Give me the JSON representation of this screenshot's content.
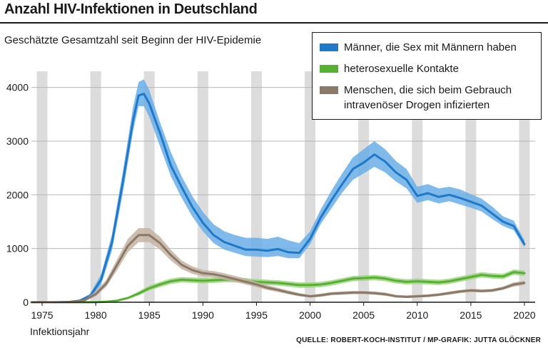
{
  "header": {
    "title": "Anzahl HIV-Infektionen in Deutschland",
    "subtitle": "Geschätzte Gesamtzahl seit Beginn der HIV-Epidemie",
    "source": "QUELLE: ROBERT-KOCH-INSTITUT / MP-GRAFIK: JUTTA GLÖCKNER"
  },
  "chart_data": {
    "type": "area",
    "title": "Anzahl HIV-Infektionen in Deutschland",
    "subtitle": "Geschätzte Gesamtzahl seit Beginn der HIV-Epidemie",
    "xlabel": "Infektionsjahr",
    "ylabel": "",
    "xlim": [
      1974,
      2021
    ],
    "ylim": [
      0,
      4300
    ],
    "x_ticks": [
      1975,
      1980,
      1985,
      1990,
      1995,
      2000,
      2005,
      2010,
      2015,
      2020
    ],
    "y_ticks": [
      0,
      1000,
      2000,
      3000,
      4000
    ],
    "shaded_year_bands": [
      1975,
      1980,
      1985,
      1990,
      1995,
      2000,
      2005,
      2010,
      2015,
      2020
    ],
    "legend_position": "top-right",
    "series": [
      {
        "name": "Männer, die Sex mit Männern haben",
        "color": "#1f78c8",
        "band_color": "#6aaee6",
        "points": [
          [
            1974,
            0,
            0,
            0
          ],
          [
            1976,
            0,
            0,
            0
          ],
          [
            1977.5,
            5,
            0,
            10
          ],
          [
            1978.5,
            30,
            15,
            45
          ],
          [
            1979.5,
            120,
            80,
            160
          ],
          [
            1980.5,
            420,
            320,
            520
          ],
          [
            1981.5,
            1100,
            950,
            1250
          ],
          [
            1982.5,
            2200,
            2000,
            2400
          ],
          [
            1983.5,
            3400,
            3200,
            3650
          ],
          [
            1984,
            3850,
            3650,
            4100
          ],
          [
            1984.5,
            3880,
            3650,
            4150
          ],
          [
            1985,
            3700,
            3450,
            3950
          ],
          [
            1986,
            3150,
            2900,
            3350
          ],
          [
            1987,
            2550,
            2350,
            2800
          ],
          [
            1988,
            2150,
            1950,
            2350
          ],
          [
            1989,
            1780,
            1600,
            1980
          ],
          [
            1990,
            1480,
            1320,
            1680
          ],
          [
            1991,
            1250,
            1100,
            1450
          ],
          [
            1992,
            1120,
            980,
            1320
          ],
          [
            1993,
            1050,
            920,
            1250
          ],
          [
            1994,
            980,
            860,
            1200
          ],
          [
            1995,
            980,
            850,
            1200
          ],
          [
            1996,
            960,
            840,
            1180
          ],
          [
            1997,
            990,
            860,
            1220
          ],
          [
            1998,
            930,
            820,
            1150
          ],
          [
            1999,
            920,
            820,
            1100
          ],
          [
            2000,
            1180,
            1080,
            1320
          ],
          [
            2001,
            1580,
            1460,
            1730
          ],
          [
            2002,
            1900,
            1750,
            2080
          ],
          [
            2003,
            2200,
            2040,
            2400
          ],
          [
            2004,
            2480,
            2280,
            2700
          ],
          [
            2005,
            2600,
            2400,
            2850
          ],
          [
            2006,
            2750,
            2520,
            3000
          ],
          [
            2007,
            2620,
            2420,
            2850
          ],
          [
            2008,
            2420,
            2250,
            2630
          ],
          [
            2009,
            2280,
            2120,
            2480
          ],
          [
            2010,
            1980,
            1850,
            2150
          ],
          [
            2011,
            2030,
            1900,
            2200
          ],
          [
            2012,
            1960,
            1840,
            2120
          ],
          [
            2013,
            2000,
            1880,
            2150
          ],
          [
            2014,
            1940,
            1820,
            2100
          ],
          [
            2015,
            1870,
            1760,
            2010
          ],
          [
            2016,
            1800,
            1690,
            1930
          ],
          [
            2017,
            1650,
            1550,
            1780
          ],
          [
            2018,
            1500,
            1420,
            1600
          ],
          [
            2019,
            1420,
            1340,
            1520
          ],
          [
            2020,
            1080,
            1020,
            1150
          ]
        ]
      },
      {
        "name": "heterosexuelle Kontakte",
        "color": "#58b033",
        "band_color": "#9fd382",
        "points": [
          [
            1974,
            0,
            0,
            0
          ],
          [
            1980,
            0,
            0,
            5
          ],
          [
            1981,
            10,
            5,
            20
          ],
          [
            1982,
            30,
            20,
            45
          ],
          [
            1983,
            80,
            60,
            100
          ],
          [
            1984,
            160,
            130,
            200
          ],
          [
            1985,
            260,
            220,
            310
          ],
          [
            1986,
            330,
            280,
            380
          ],
          [
            1987,
            390,
            340,
            440
          ],
          [
            1988,
            420,
            370,
            470
          ],
          [
            1989,
            410,
            360,
            460
          ],
          [
            1990,
            400,
            350,
            450
          ],
          [
            1991,
            410,
            360,
            460
          ],
          [
            1992,
            420,
            370,
            470
          ],
          [
            1993,
            420,
            370,
            470
          ],
          [
            1994,
            400,
            350,
            450
          ],
          [
            1995,
            380,
            330,
            430
          ],
          [
            1996,
            370,
            320,
            420
          ],
          [
            1997,
            360,
            310,
            410
          ],
          [
            1998,
            340,
            290,
            390
          ],
          [
            1999,
            320,
            270,
            370
          ],
          [
            2000,
            320,
            270,
            370
          ],
          [
            2001,
            330,
            280,
            380
          ],
          [
            2002,
            360,
            310,
            410
          ],
          [
            2003,
            400,
            350,
            450
          ],
          [
            2004,
            440,
            390,
            490
          ],
          [
            2005,
            450,
            400,
            500
          ],
          [
            2006,
            460,
            410,
            510
          ],
          [
            2007,
            440,
            390,
            490
          ],
          [
            2008,
            400,
            350,
            450
          ],
          [
            2009,
            380,
            330,
            430
          ],
          [
            2010,
            390,
            340,
            440
          ],
          [
            2011,
            380,
            330,
            430
          ],
          [
            2012,
            370,
            320,
            420
          ],
          [
            2013,
            390,
            340,
            440
          ],
          [
            2014,
            430,
            380,
            480
          ],
          [
            2015,
            470,
            420,
            520
          ],
          [
            2016,
            510,
            460,
            560
          ],
          [
            2017,
            490,
            440,
            540
          ],
          [
            2018,
            480,
            430,
            530
          ],
          [
            2019,
            560,
            510,
            610
          ],
          [
            2020,
            540,
            490,
            590
          ]
        ]
      },
      {
        "name": "Menschen, die sich beim Gebrauch intravenöser Drogen infizierten",
        "color": "#8a7868",
        "band_color": "#c4b3a2",
        "points": [
          [
            1974,
            0,
            0,
            0
          ],
          [
            1977,
            0,
            0,
            5
          ],
          [
            1978,
            10,
            5,
            20
          ],
          [
            1979,
            40,
            25,
            60
          ],
          [
            1980,
            150,
            110,
            200
          ],
          [
            1981,
            350,
            290,
            420
          ],
          [
            1982,
            700,
            600,
            800
          ],
          [
            1983,
            1050,
            930,
            1180
          ],
          [
            1984,
            1250,
            1120,
            1380
          ],
          [
            1985,
            1250,
            1120,
            1380
          ],
          [
            1986,
            1100,
            980,
            1220
          ],
          [
            1987,
            880,
            780,
            980
          ],
          [
            1988,
            700,
            620,
            780
          ],
          [
            1989,
            600,
            530,
            670
          ],
          [
            1990,
            540,
            480,
            600
          ],
          [
            1991,
            520,
            460,
            580
          ],
          [
            1992,
            480,
            420,
            540
          ],
          [
            1993,
            430,
            380,
            490
          ],
          [
            1994,
            380,
            330,
            440
          ],
          [
            1995,
            330,
            280,
            380
          ],
          [
            1996,
            270,
            230,
            320
          ],
          [
            1997,
            230,
            190,
            270
          ],
          [
            1998,
            180,
            150,
            220
          ],
          [
            1999,
            140,
            110,
            170
          ],
          [
            2000,
            110,
            90,
            140
          ],
          [
            2001,
            130,
            100,
            160
          ],
          [
            2002,
            160,
            130,
            190
          ],
          [
            2003,
            170,
            140,
            200
          ],
          [
            2004,
            180,
            150,
            210
          ],
          [
            2005,
            180,
            150,
            210
          ],
          [
            2006,
            170,
            140,
            200
          ],
          [
            2007,
            150,
            120,
            180
          ],
          [
            2008,
            110,
            90,
            140
          ],
          [
            2009,
            100,
            80,
            130
          ],
          [
            2010,
            110,
            90,
            140
          ],
          [
            2011,
            120,
            95,
            150
          ],
          [
            2012,
            140,
            115,
            170
          ],
          [
            2013,
            170,
            140,
            200
          ],
          [
            2014,
            200,
            170,
            230
          ],
          [
            2015,
            220,
            190,
            250
          ],
          [
            2016,
            210,
            180,
            240
          ],
          [
            2017,
            220,
            190,
            250
          ],
          [
            2018,
            260,
            230,
            290
          ],
          [
            2019,
            330,
            290,
            370
          ],
          [
            2020,
            360,
            320,
            400
          ]
        ]
      }
    ]
  }
}
